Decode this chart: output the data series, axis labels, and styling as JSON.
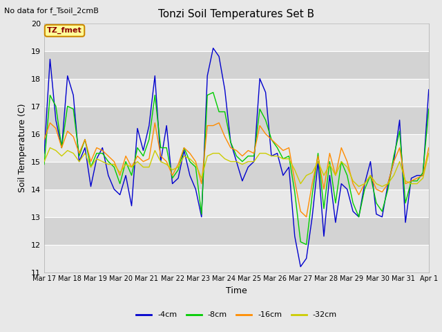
{
  "title": "Tonzi Soil Temperatures Set B",
  "xlabel": "Time",
  "ylabel": "Soil Temperature (C)",
  "note": "No data for f_Tsoil_2cmB",
  "box_label": "TZ_fmet",
  "ylim": [
    11.0,
    20.0
  ],
  "yticks": [
    11.0,
    12.0,
    13.0,
    14.0,
    15.0,
    16.0,
    17.0,
    18.0,
    19.0,
    20.0
  ],
  "xtick_labels": [
    "Mar 17",
    "Mar 18",
    "Mar 19",
    "Mar 20",
    "Mar 21",
    "Mar 22",
    "Mar 23",
    "Mar 24",
    "Mar 25",
    "Mar 26",
    "Mar 27",
    "Mar 28",
    "Mar 29",
    "Mar 30",
    "Mar 31",
    "Apr 1"
  ],
  "line_colors": [
    "#0000cd",
    "#00cc00",
    "#ff8c00",
    "#cccc00"
  ],
  "line_labels": [
    "-4cm",
    "-8cm",
    "-16cm",
    "-32cm"
  ],
  "fig_bg_color": "#e8e8e8",
  "plot_bg_color": "#d3d3d3",
  "plot_bg_light": "#e8e8e8",
  "grid_color": "#ffffff",
  "title_fontsize": 11,
  "axis_label_fontsize": 9,
  "tick_fontsize": 8,
  "note_fontsize": 8,
  "t4cm": [
    15.3,
    18.7,
    16.5,
    15.5,
    18.1,
    17.4,
    15.0,
    15.5,
    14.1,
    15.1,
    15.5,
    14.5,
    14.0,
    13.8,
    14.5,
    13.4,
    16.2,
    15.4,
    16.3,
    18.1,
    15.0,
    16.3,
    14.2,
    14.4,
    15.4,
    14.5,
    14.0,
    13.0,
    18.1,
    19.1,
    18.8,
    17.6,
    15.7,
    15.0,
    14.3,
    14.8,
    15.0,
    18.0,
    17.5,
    15.2,
    15.3,
    14.5,
    14.8,
    12.3,
    11.2,
    11.5,
    13.0,
    15.0,
    12.3,
    14.5,
    12.8,
    14.2,
    14.0,
    13.2,
    13.0,
    14.2,
    15.0,
    13.1,
    13.0,
    14.2,
    15.0,
    16.5,
    12.8,
    14.4,
    14.5,
    14.5,
    17.6
  ],
  "t8cm": [
    14.9,
    17.4,
    17.0,
    15.5,
    17.0,
    16.9,
    15.2,
    15.8,
    14.8,
    15.3,
    15.3,
    15.0,
    14.8,
    14.2,
    15.0,
    14.5,
    15.5,
    15.2,
    15.8,
    17.4,
    15.5,
    15.5,
    14.4,
    14.7,
    15.5,
    15.0,
    14.8,
    13.1,
    17.4,
    17.5,
    16.8,
    16.8,
    15.7,
    15.2,
    15.0,
    15.2,
    15.2,
    16.9,
    16.5,
    15.8,
    15.5,
    15.1,
    15.2,
    13.9,
    12.1,
    12.0,
    13.8,
    15.3,
    13.3,
    15.0,
    13.5,
    15.0,
    14.5,
    13.5,
    13.0,
    14.0,
    14.5,
    13.5,
    13.2,
    14.0,
    15.2,
    16.1,
    13.5,
    14.3,
    14.3,
    14.6,
    16.9
  ],
  "t16cm": [
    15.8,
    16.4,
    16.2,
    15.5,
    16.1,
    15.9,
    15.3,
    15.8,
    15.0,
    15.5,
    15.4,
    15.2,
    15.0,
    14.5,
    15.2,
    14.8,
    15.2,
    15.0,
    15.1,
    16.4,
    15.2,
    15.0,
    14.5,
    14.9,
    15.5,
    15.3,
    15.0,
    14.2,
    16.3,
    16.3,
    16.4,
    15.9,
    15.5,
    15.4,
    15.2,
    15.4,
    15.3,
    16.3,
    16.0,
    15.8,
    15.6,
    15.4,
    15.5,
    14.3,
    13.2,
    13.0,
    14.2,
    15.2,
    14.0,
    15.3,
    14.5,
    15.5,
    15.0,
    14.2,
    13.8,
    14.2,
    14.5,
    14.0,
    13.9,
    14.2,
    15.0,
    15.5,
    14.2,
    14.3,
    14.4,
    14.5,
    15.5
  ],
  "t32cm": [
    15.0,
    15.5,
    15.4,
    15.2,
    15.4,
    15.3,
    15.0,
    15.3,
    14.8,
    15.1,
    15.0,
    14.9,
    14.9,
    14.6,
    14.9,
    14.8,
    15.0,
    14.8,
    14.8,
    15.4,
    15.0,
    14.9,
    14.7,
    14.8,
    15.2,
    15.1,
    14.9,
    14.4,
    15.2,
    15.3,
    15.3,
    15.1,
    15.0,
    15.0,
    14.9,
    15.0,
    15.0,
    15.3,
    15.3,
    15.2,
    15.2,
    15.1,
    15.1,
    14.7,
    14.2,
    14.5,
    14.6,
    15.0,
    14.5,
    14.9,
    14.5,
    15.0,
    14.8,
    14.3,
    14.1,
    14.2,
    14.5,
    14.2,
    14.1,
    14.2,
    14.5,
    15.0,
    14.3,
    14.2,
    14.2,
    14.4,
    15.3
  ]
}
